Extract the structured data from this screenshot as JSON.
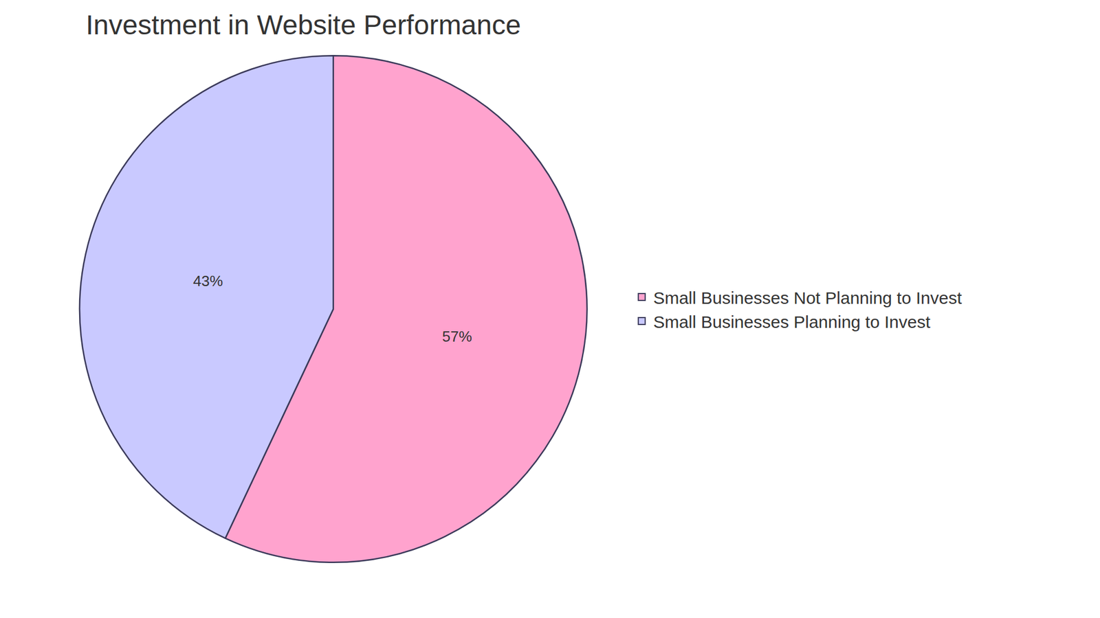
{
  "chart_data": {
    "type": "pie",
    "title": "Investment in Website Performance",
    "categories": [
      "Small Businesses Not Planning to Invest",
      "Small Businesses Planning to Invest"
    ],
    "values": [
      57,
      43
    ],
    "value_labels": [
      "57%",
      "43%"
    ],
    "colors": [
      "#ffa3ce",
      "#c9c9ff"
    ],
    "data_labels": true,
    "legend": "right"
  }
}
